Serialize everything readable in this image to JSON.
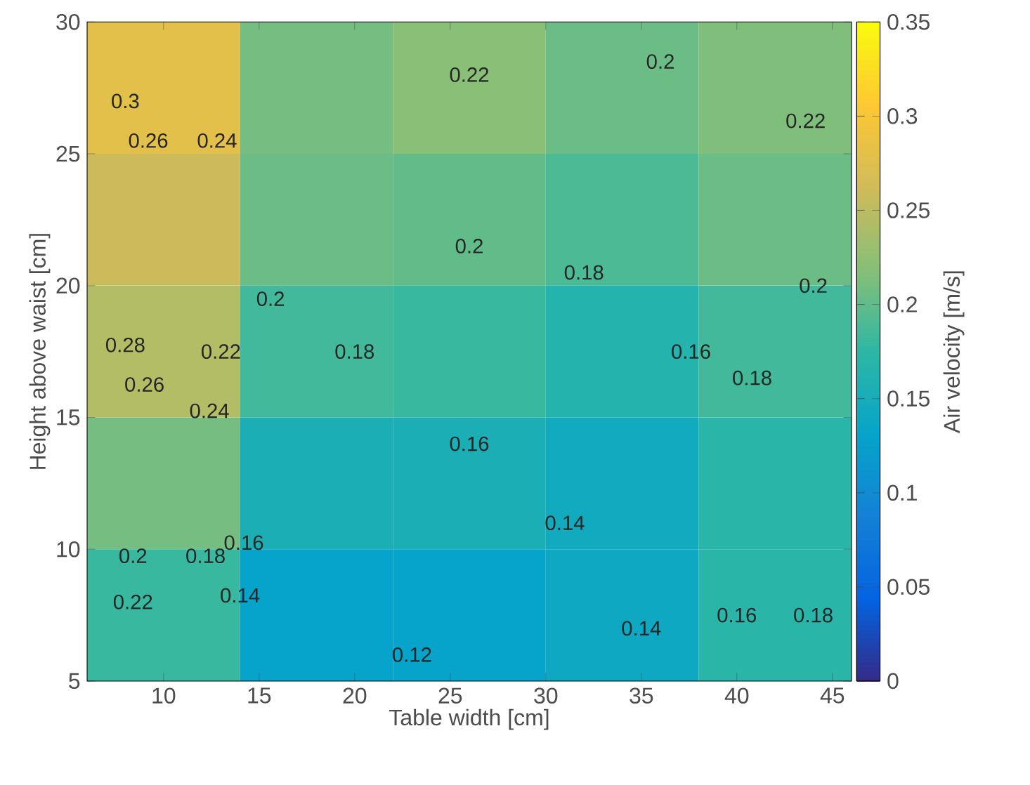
{
  "chart_data": {
    "type": "heatmap",
    "xlabel": "Table width [cm]",
    "ylabel": "Height above waist [cm]",
    "clabel": "Air velocity [m/s]",
    "x": [
      10,
      18,
      26,
      34,
      42
    ],
    "y": [
      27.5,
      22.5,
      17.5,
      12.5,
      7.5
    ],
    "cells": [
      [
        0.28,
        0.21,
        0.22,
        0.205,
        0.215
      ],
      [
        0.26,
        0.205,
        0.2,
        0.19,
        0.205
      ],
      [
        0.245,
        0.185,
        0.18,
        0.165,
        0.185
      ],
      [
        0.21,
        0.155,
        0.155,
        0.145,
        0.17
      ],
      [
        0.18,
        0.13,
        0.13,
        0.14,
        0.17
      ]
    ],
    "xlim": [
      6,
      46
    ],
    "ylim": [
      5,
      30
    ],
    "xticks": [
      10,
      15,
      20,
      25,
      30,
      35,
      40,
      45
    ],
    "yticks": [
      5,
      10,
      15,
      20,
      25,
      30
    ],
    "clim": [
      0,
      0.35
    ],
    "cticks": [
      0,
      0.05,
      0.1,
      0.15,
      0.2,
      0.25,
      0.3,
      0.35
    ],
    "annotations": [
      "0.22",
      "0.2",
      "0.22",
      "0.3",
      "0.26",
      "0.24",
      "0.2",
      "0.18",
      "0.2",
      "0.22",
      "0.28",
      "0.26",
      "0.24",
      "0.18",
      "0.2",
      "0.18",
      "0.16",
      "0.16",
      "0.14",
      "0.22",
      "0.2",
      "0.18",
      "0.16",
      "0.14",
      "0.12",
      "0.14",
      "0.16",
      "0.18"
    ]
  }
}
